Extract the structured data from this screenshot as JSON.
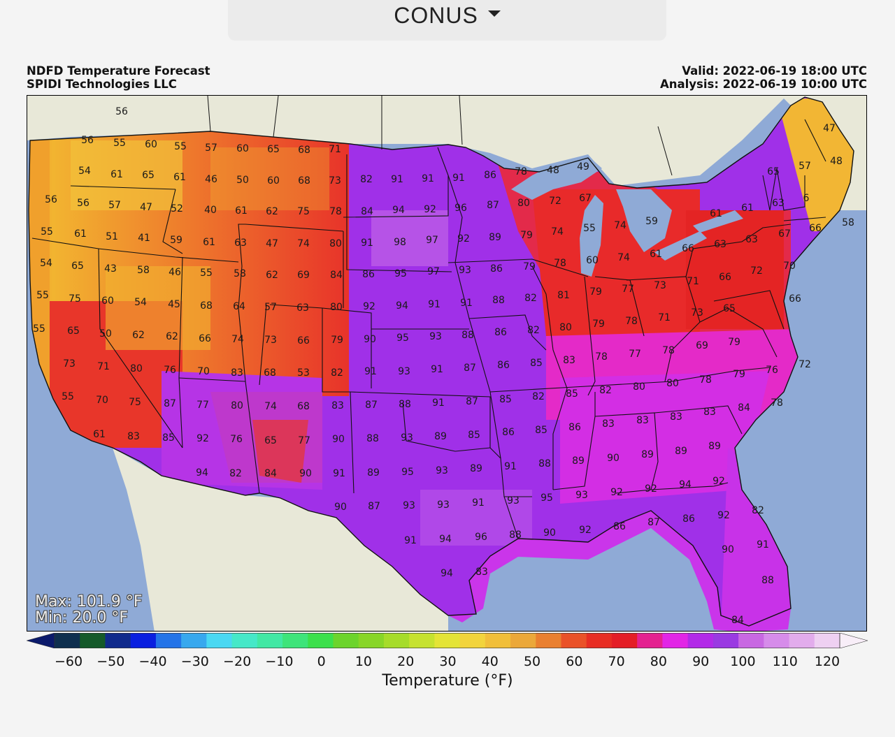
{
  "region_selector": {
    "value": "CONUS"
  },
  "header": {
    "title": "NDFD Temperature Forecast",
    "provider": "SPIDI Technologies LLC",
    "valid": "Valid: 2022-06-19 18:00 UTC",
    "analysis": "Analysis: 2022-06-19 10:00 UTC"
  },
  "stats": {
    "max": "Max: 101.9 °F",
    "min": "Min: 20.0 °F"
  },
  "colorbar": {
    "label": "Temperature (°F)",
    "ticks": [
      "−60",
      "−50",
      "−40",
      "−30",
      "−20",
      "−10",
      "0",
      "10",
      "20",
      "30",
      "40",
      "50",
      "60",
      "70",
      "80",
      "90",
      "100",
      "110",
      "120"
    ],
    "colors": [
      "#0b1a6b",
      "#0f2f4f",
      "#155a2a",
      "#102a8c",
      "#0a1fe0",
      "#2474e8",
      "#38a8ee",
      "#4ad8f2",
      "#46e8c8",
      "#42e8a4",
      "#3ee47a",
      "#3ce04c",
      "#6cd42c",
      "#88d628",
      "#a6dc2a",
      "#c6e230",
      "#e4e436",
      "#f2d43c",
      "#f1bf3a",
      "#eba83a",
      "#ea8030",
      "#ea5228",
      "#e82e24",
      "#e41e26",
      "#e42290",
      "#e226e6",
      "#b22ae8",
      "#9a3ae2",
      "#c868e2",
      "#d68cea",
      "#e2acec",
      "#eed0f2",
      "#f8eef8"
    ],
    "colors_note": "fills"
  },
  "colors": {
    "ocean": "#8faad6",
    "land": "#e8e8d8",
    "lake": "#8faad6",
    "cool": "#f2c23a",
    "mild": "#ec8a2e",
    "warm": "#e83426",
    "hot": "#e02c6a",
    "veryhot": "#e030e4",
    "purple": "#a030e8"
  },
  "stations": [
    [
      "56",
      173,
      159
    ],
    [
      "56",
      124,
      200
    ],
    [
      "55",
      170,
      204
    ],
    [
      "60",
      215,
      206
    ],
    [
      "55",
      257,
      209
    ],
    [
      "57",
      301,
      211
    ],
    [
      "60",
      346,
      212
    ],
    [
      "65",
      390,
      213
    ],
    [
      "68",
      434,
      214
    ],
    [
      "71",
      478,
      213
    ],
    [
      "54",
      120,
      244
    ],
    [
      "61",
      166,
      249
    ],
    [
      "65",
      211,
      250
    ],
    [
      "61",
      256,
      253
    ],
    [
      "46",
      301,
      256
    ],
    [
      "50",
      346,
      257
    ],
    [
      "60",
      390,
      258
    ],
    [
      "68",
      434,
      258
    ],
    [
      "73",
      478,
      258
    ],
    [
      "82",
      523,
      256
    ],
    [
      "91",
      567,
      256
    ],
    [
      "91",
      611,
      255
    ],
    [
      "91",
      655,
      254
    ],
    [
      "86",
      700,
      250
    ],
    [
      "78",
      744,
      245
    ],
    [
      "48",
      790,
      243
    ],
    [
      "49",
      833,
      238
    ],
    [
      "65",
      1105,
      245
    ],
    [
      "57",
      1150,
      237
    ],
    [
      "47",
      1185,
      183
    ],
    [
      "48",
      1195,
      230
    ],
    [
      "56",
      72,
      285
    ],
    [
      "56",
      118,
      290
    ],
    [
      "57",
      163,
      293
    ],
    [
      "47",
      208,
      296
    ],
    [
      "52",
      252,
      298
    ],
    [
      "40",
      300,
      300
    ],
    [
      "61",
      344,
      301
    ],
    [
      "62",
      388,
      302
    ],
    [
      "75",
      433,
      302
    ],
    [
      "78",
      479,
      302
    ],
    [
      "84",
      524,
      302
    ],
    [
      "94",
      569,
      300
    ],
    [
      "92",
      614,
      299
    ],
    [
      "96",
      658,
      297
    ],
    [
      "87",
      704,
      293
    ],
    [
      "80",
      748,
      290
    ],
    [
      "72",
      793,
      287
    ],
    [
      "67",
      836,
      283
    ],
    [
      "61",
      1023,
      305
    ],
    [
      "61",
      1068,
      297
    ],
    [
      "63",
      1112,
      290
    ],
    [
      "6",
      1152,
      283
    ],
    [
      "59",
      931,
      316
    ],
    [
      "58",
      1212,
      318
    ],
    [
      "55",
      66,
      331
    ],
    [
      "61",
      114,
      334
    ],
    [
      "51",
      159,
      338
    ],
    [
      "41",
      205,
      340
    ],
    [
      "59",
      251,
      343
    ],
    [
      "61",
      298,
      346
    ],
    [
      "63",
      343,
      347
    ],
    [
      "47",
      388,
      348
    ],
    [
      "74",
      433,
      348
    ],
    [
      "80",
      479,
      348
    ],
    [
      "91",
      524,
      347
    ],
    [
      "98",
      571,
      346
    ],
    [
      "97",
      617,
      343
    ],
    [
      "92",
      662,
      341
    ],
    [
      "89",
      707,
      339
    ],
    [
      "79",
      752,
      336
    ],
    [
      "74",
      796,
      331
    ],
    [
      "55",
      842,
      326
    ],
    [
      "74",
      886,
      322
    ],
    [
      "67",
      1121,
      334
    ],
    [
      "66",
      1165,
      326
    ],
    [
      "54",
      65,
      376
    ],
    [
      "65",
      110,
      380
    ],
    [
      "43",
      157,
      384
    ],
    [
      "58",
      204,
      386
    ],
    [
      "46",
      249,
      389
    ],
    [
      "55",
      294,
      390
    ],
    [
      "58",
      342,
      391
    ],
    [
      "62",
      388,
      393
    ],
    [
      "69",
      433,
      393
    ],
    [
      "84",
      480,
      393
    ],
    [
      "86",
      526,
      392
    ],
    [
      "95",
      572,
      391
    ],
    [
      "97",
      619,
      388
    ],
    [
      "93",
      664,
      386
    ],
    [
      "86",
      709,
      384
    ],
    [
      "79",
      756,
      381
    ],
    [
      "78",
      800,
      376
    ],
    [
      "60",
      846,
      372
    ],
    [
      "74",
      891,
      368
    ],
    [
      "61",
      937,
      363
    ],
    [
      "66",
      983,
      355
    ],
    [
      "63",
      1029,
      349
    ],
    [
      "63",
      1074,
      342
    ],
    [
      "70",
      1128,
      380
    ],
    [
      "55",
      60,
      422
    ],
    [
      "75",
      106,
      427
    ],
    [
      "60",
      153,
      430
    ],
    [
      "54",
      200,
      432
    ],
    [
      "45",
      248,
      435
    ],
    [
      "68",
      294,
      437
    ],
    [
      "64",
      341,
      438
    ],
    [
      "57",
      386,
      439
    ],
    [
      "63",
      432,
      440
    ],
    [
      "80",
      480,
      439
    ],
    [
      "92",
      527,
      438
    ],
    [
      "94",
      574,
      437
    ],
    [
      "91",
      620,
      435
    ],
    [
      "91",
      666,
      433
    ],
    [
      "88",
      712,
      429
    ],
    [
      "82",
      758,
      426
    ],
    [
      "81",
      805,
      422
    ],
    [
      "79",
      851,
      417
    ],
    [
      "77",
      897,
      413
    ],
    [
      "73",
      943,
      408
    ],
    [
      "71",
      990,
      402
    ],
    [
      "66",
      1036,
      396
    ],
    [
      "72",
      1081,
      387
    ],
    [
      "66",
      1136,
      427
    ],
    [
      "55",
      55,
      470
    ],
    [
      "65",
      104,
      473
    ],
    [
      "50",
      150,
      477
    ],
    [
      "62",
      197,
      479
    ],
    [
      "62",
      245,
      481
    ],
    [
      "66",
      292,
      484
    ],
    [
      "74",
      339,
      485
    ],
    [
      "73",
      386,
      486
    ],
    [
      "66",
      433,
      487
    ],
    [
      "79",
      481,
      486
    ],
    [
      "90",
      528,
      485
    ],
    [
      "95",
      575,
      483
    ],
    [
      "93",
      622,
      481
    ],
    [
      "88",
      668,
      479
    ],
    [
      "86",
      715,
      475
    ],
    [
      "82",
      762,
      472
    ],
    [
      "80",
      808,
      468
    ],
    [
      "79",
      855,
      463
    ],
    [
      "78",
      902,
      459
    ],
    [
      "71",
      949,
      454
    ],
    [
      "73",
      996,
      447
    ],
    [
      "65",
      1042,
      441
    ],
    [
      "73",
      98,
      520
    ],
    [
      "71",
      147,
      524
    ],
    [
      "80",
      194,
      527
    ],
    [
      "76",
      242,
      529
    ],
    [
      "70",
      290,
      531
    ],
    [
      "83",
      338,
      533
    ],
    [
      "68",
      385,
      533
    ],
    [
      "53",
      433,
      533
    ],
    [
      "82",
      481,
      533
    ],
    [
      "91",
      529,
      531
    ],
    [
      "93",
      577,
      531
    ],
    [
      "91",
      624,
      528
    ],
    [
      "87",
      671,
      526
    ],
    [
      "86",
      719,
      522
    ],
    [
      "85",
      766,
      519
    ],
    [
      "83",
      813,
      515
    ],
    [
      "78",
      859,
      510
    ],
    [
      "77",
      907,
      506
    ],
    [
      "78",
      955,
      501
    ],
    [
      "69",
      1003,
      494
    ],
    [
      "79",
      1049,
      489
    ],
    [
      "76",
      1103,
      529
    ],
    [
      "72",
      1150,
      521
    ],
    [
      "55",
      96,
      567
    ],
    [
      "70",
      145,
      572
    ],
    [
      "75",
      192,
      575
    ],
    [
      "87",
      242,
      577
    ],
    [
      "77",
      289,
      579
    ],
    [
      "80",
      338,
      580
    ],
    [
      "74",
      386,
      581
    ],
    [
      "68",
      433,
      581
    ],
    [
      "83",
      482,
      580
    ],
    [
      "87",
      530,
      579
    ],
    [
      "88",
      578,
      578
    ],
    [
      "91",
      626,
      576
    ],
    [
      "87",
      674,
      574
    ],
    [
      "85",
      722,
      571
    ],
    [
      "82",
      769,
      567
    ],
    [
      "85",
      817,
      563
    ],
    [
      "82",
      865,
      558
    ],
    [
      "80",
      913,
      553
    ],
    [
      "80",
      961,
      548
    ],
    [
      "78",
      1008,
      543
    ],
    [
      "79",
      1056,
      535
    ],
    [
      "78",
      1110,
      576
    ],
    [
      "84",
      1063,
      583
    ],
    [
      "61",
      141,
      621
    ],
    [
      "83",
      190,
      624
    ],
    [
      "85",
      240,
      626
    ],
    [
      "92",
      289,
      627
    ],
    [
      "76",
      337,
      628
    ],
    [
      "65",
      386,
      630
    ],
    [
      "77",
      434,
      630
    ],
    [
      "90",
      483,
      628
    ],
    [
      "88",
      532,
      627
    ],
    [
      "93",
      581,
      626
    ],
    [
      "89",
      629,
      624
    ],
    [
      "85",
      677,
      622
    ],
    [
      "86",
      726,
      618
    ],
    [
      "85",
      773,
      615
    ],
    [
      "86",
      821,
      611
    ],
    [
      "83",
      869,
      606
    ],
    [
      "83",
      918,
      601
    ],
    [
      "83",
      966,
      596
    ],
    [
      "83",
      1014,
      589
    ],
    [
      "89",
      1021,
      638
    ],
    [
      "94",
      288,
      676
    ],
    [
      "82",
      336,
      677
    ],
    [
      "84",
      386,
      677
    ],
    [
      "90",
      436,
      677
    ],
    [
      "91",
      484,
      677
    ],
    [
      "89",
      533,
      676
    ],
    [
      "95",
      582,
      675
    ],
    [
      "93",
      631,
      673
    ],
    [
      "89",
      680,
      670
    ],
    [
      "91",
      729,
      667
    ],
    [
      "88",
      778,
      663
    ],
    [
      "89",
      826,
      659
    ],
    [
      "90",
      876,
      655
    ],
    [
      "89",
      925,
      650
    ],
    [
      "89",
      973,
      645
    ],
    [
      "92",
      1027,
      688
    ],
    [
      "82",
      1083,
      730
    ],
    [
      "90",
      486,
      725
    ],
    [
      "87",
      534,
      724
    ],
    [
      "93",
      584,
      723
    ],
    [
      "93",
      633,
      722
    ],
    [
      "91",
      683,
      719
    ],
    [
      "93",
      733,
      716
    ],
    [
      "95",
      781,
      712
    ],
    [
      "93",
      831,
      708
    ],
    [
      "92",
      881,
      704
    ],
    [
      "92",
      930,
      699
    ],
    [
      "94",
      979,
      693
    ],
    [
      "92",
      1034,
      737
    ],
    [
      "91",
      586,
      773
    ],
    [
      "94",
      636,
      771
    ],
    [
      "96",
      687,
      768
    ],
    [
      "88",
      736,
      765
    ],
    [
      "90",
      785,
      762
    ],
    [
      "92",
      836,
      758
    ],
    [
      "86",
      885,
      753
    ],
    [
      "87",
      934,
      747
    ],
    [
      "86",
      984,
      742
    ],
    [
      "90",
      1040,
      786
    ],
    [
      "91",
      1090,
      779
    ],
    [
      "94",
      638,
      820
    ],
    [
      "83",
      688,
      818
    ],
    [
      "88",
      1097,
      830
    ],
    [
      "84",
      1054,
      887
    ]
  ]
}
